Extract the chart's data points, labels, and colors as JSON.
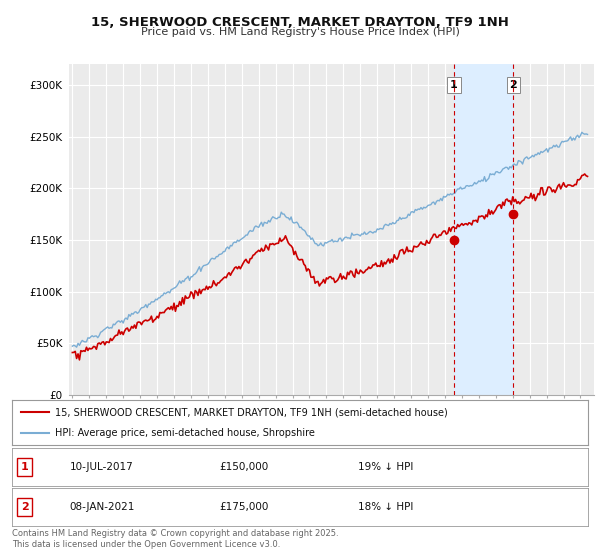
{
  "title": "15, SHERWOOD CRESCENT, MARKET DRAYTON, TF9 1NH",
  "subtitle": "Price paid vs. HM Land Registry's House Price Index (HPI)",
  "ylabel_ticks": [
    "£0",
    "£50K",
    "£100K",
    "£150K",
    "£200K",
    "£250K",
    "£300K"
  ],
  "ytick_values": [
    0,
    50000,
    100000,
    150000,
    200000,
    250000,
    300000
  ],
  "ylim": [
    0,
    320000
  ],
  "xlim_left": 1994.8,
  "xlim_right": 2025.8,
  "background_color": "#ffffff",
  "plot_bg_color": "#ebebeb",
  "grid_color": "#ffffff",
  "hpi_color": "#7aadd4",
  "price_color": "#cc0000",
  "vline_color": "#cc0000",
  "shade_color": "#ddeeff",
  "annotation1": {
    "label": "1",
    "date": "10-JUL-2017",
    "price": "£150,000",
    "hpi_diff": "19% ↓ HPI",
    "x_year": 2017.53
  },
  "annotation2": {
    "label": "2",
    "date": "08-JAN-2021",
    "price": "£175,000",
    "hpi_diff": "18% ↓ HPI",
    "x_year": 2021.03
  },
  "legend_line1": "15, SHERWOOD CRESCENT, MARKET DRAYTON, TF9 1NH (semi-detached house)",
  "legend_line2": "HPI: Average price, semi-detached house, Shropshire",
  "footer": "Contains HM Land Registry data © Crown copyright and database right 2025.\nThis data is licensed under the Open Government Licence v3.0.",
  "marker1_y": 150000,
  "marker2_y": 175000
}
